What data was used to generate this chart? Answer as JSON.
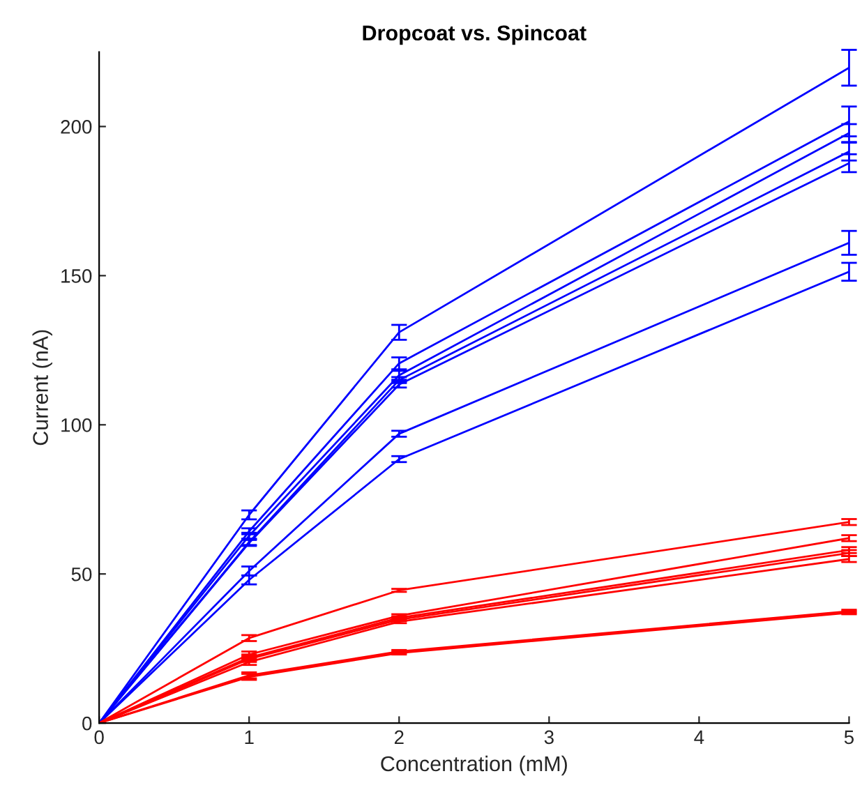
{
  "chart_data": {
    "type": "line",
    "title": "Dropcoat vs. Spincoat",
    "xlabel": "Concentration (mM)",
    "ylabel": "Current (nA)",
    "x": [
      0,
      1,
      2,
      5
    ],
    "xlim": [
      0,
      5
    ],
    "xticks": [
      0,
      1,
      2,
      3,
      4,
      5
    ],
    "ylim": [
      0,
      225
    ],
    "yticks": [
      0,
      50,
      100,
      150,
      200
    ],
    "grid": false,
    "marker": "none",
    "line_style": "solid",
    "series": [
      {
        "color": "#0000ff",
        "values": [
          0,
          69.8,
          131,
          219.7
        ],
        "errors": [
          null,
          1.5,
          2.5,
          6
        ]
      },
      {
        "color": "#0000ff",
        "values": [
          0,
          64.3,
          120.6,
          201.7
        ],
        "errors": [
          null,
          1,
          2,
          5
        ]
      },
      {
        "color": "#0000ff",
        "values": [
          0,
          62.8,
          116.6,
          197.8
        ],
        "errors": [
          null,
          1,
          1.5,
          3
        ]
      },
      {
        "color": "#0000ff",
        "values": [
          0,
          60.7,
          115,
          191.6
        ],
        "errors": [
          null,
          1,
          1,
          3
        ]
      },
      {
        "color": "#0000ff",
        "values": [
          0,
          60.4,
          113.5,
          187.7
        ],
        "errors": [
          null,
          1,
          1,
          3
        ]
      },
      {
        "color": "#0000ff",
        "values": [
          0,
          51,
          97,
          161
        ],
        "errors": [
          null,
          1.5,
          1,
          4
        ]
      },
      {
        "color": "#0000ff",
        "values": [
          0,
          48,
          88.5,
          151.3
        ],
        "errors": [
          null,
          1.5,
          1,
          3
        ]
      },
      {
        "color": "#ff0000",
        "values": [
          0,
          28.5,
          44.5,
          67.4
        ],
        "errors": [
          null,
          1,
          0.5,
          1
        ]
      },
      {
        "color": "#ff0000",
        "values": [
          0,
          23,
          36,
          62
        ],
        "errors": [
          null,
          1,
          0.5,
          1
        ]
      },
      {
        "color": "#ff0000",
        "values": [
          0,
          22,
          35.3,
          58
        ],
        "errors": [
          null,
          1,
          0.5,
          1
        ]
      },
      {
        "color": "#ff0000",
        "values": [
          0,
          21.5,
          34.7,
          57
        ],
        "errors": [
          null,
          1,
          0.5,
          1
        ]
      },
      {
        "color": "#ff0000",
        "values": [
          0,
          20.5,
          34,
          55
        ],
        "errors": [
          null,
          1,
          0.5,
          1
        ]
      },
      {
        "color": "#ff0000",
        "values": [
          0,
          16,
          24,
          37.5
        ],
        "errors": [
          null,
          1,
          0.5,
          0.5
        ]
      },
      {
        "color": "#ff0000",
        "values": [
          0,
          15.5,
          23.5,
          37
        ],
        "errors": [
          null,
          1,
          0.5,
          0.5
        ]
      }
    ]
  }
}
